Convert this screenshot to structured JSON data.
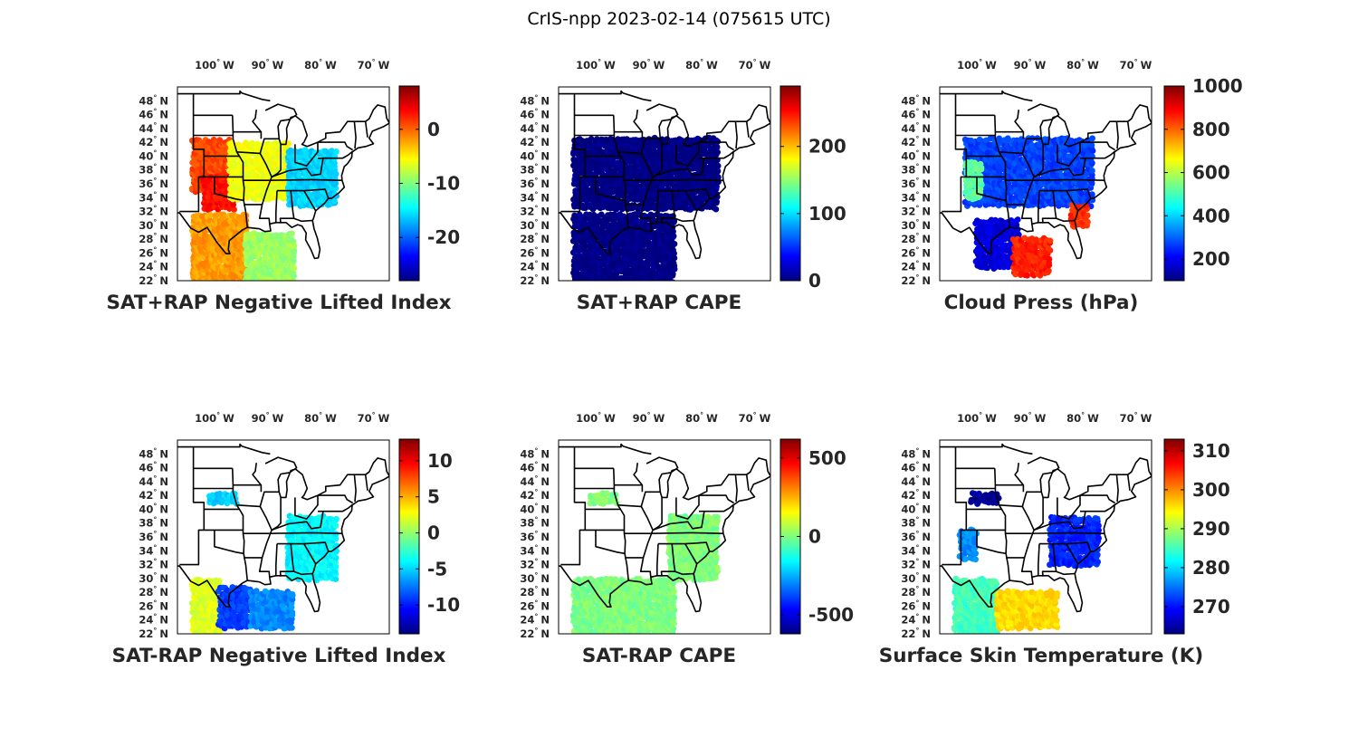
{
  "suptitle": "CrIS-npp 2023-02-14 (075615 UTC)",
  "colormap": [
    "#00007f",
    "#0000ff",
    "#007fff",
    "#00ffff",
    "#7fff7f",
    "#ffff00",
    "#ff7f00",
    "#ff0000",
    "#7f0000"
  ],
  "colors": {
    "boundaries": "#000000",
    "axes": "#000000",
    "text": "#262626",
    "background": "#ffffff"
  },
  "map_axes": {
    "lon_range": [
      -107,
      -67
    ],
    "lat_range": [
      22,
      50
    ],
    "lon_ticks": [
      {
        "lon": -100,
        "label": "100",
        "unit": "W"
      },
      {
        "lon": -90,
        "label": "90",
        "unit": "W"
      },
      {
        "lon": -80,
        "label": "80",
        "unit": "W"
      },
      {
        "lon": -70,
        "label": "70",
        "unit": "W"
      }
    ],
    "lat_ticks": [
      {
        "lat": 48,
        "label": "48",
        "unit": "N"
      },
      {
        "lat": 46,
        "label": "46",
        "unit": "N"
      },
      {
        "lat": 44,
        "label": "44",
        "unit": "N"
      },
      {
        "lat": 42,
        "label": "42",
        "unit": "N"
      },
      {
        "lat": 40,
        "label": "40",
        "unit": "N"
      },
      {
        "lat": 38,
        "label": "38",
        "unit": "N"
      },
      {
        "lat": 36,
        "label": "36",
        "unit": "N"
      },
      {
        "lat": 34,
        "label": "34",
        "unit": "N"
      },
      {
        "lat": 32,
        "label": "32",
        "unit": "N"
      },
      {
        "lat": 30,
        "label": "30",
        "unit": "N"
      },
      {
        "lat": 28,
        "label": "28",
        "unit": "N"
      },
      {
        "lat": 26,
        "label": "26",
        "unit": "N"
      },
      {
        "lat": 24,
        "label": "24",
        "unit": "N"
      },
      {
        "lat": 22,
        "label": "22",
        "unit": "N"
      }
    ]
  },
  "chart_data": [
    {
      "type": "scatter-map",
      "title": "SAT+RAP Negative Lifted Index",
      "colorbar": {
        "range": [
          -28,
          8
        ],
        "ticks": [
          0,
          -10,
          -20
        ],
        "tick_labels": [
          "0",
          "-10",
          "-20"
        ]
      },
      "regions": [
        {
          "name": "northern swath west",
          "lon": [
            -104,
            -97
          ],
          "lat": [
            35,
            42.5
          ],
          "value": 1
        },
        {
          "name": "southern plains",
          "lon": [
            -102,
            -96
          ],
          "lat": [
            32.5,
            37
          ],
          "value": 3
        },
        {
          "name": "northern swath central",
          "lon": [
            -97,
            -86
          ],
          "lat": [
            34,
            42
          ],
          "value": -6
        },
        {
          "name": "northern swath east",
          "lon": [
            -86,
            -77
          ],
          "lat": [
            33,
            41
          ],
          "value": -16
        },
        {
          "name": "southern swath west",
          "lon": [
            -104,
            -94
          ],
          "lat": [
            22,
            31.5
          ],
          "value": -2
        },
        {
          "name": "southern swath east",
          "lon": [
            -94,
            -85
          ],
          "lat": [
            22,
            29
          ],
          "value": -9
        }
      ]
    },
    {
      "type": "scatter-map",
      "title": "SAT+RAP CAPE",
      "colorbar": {
        "range": [
          0,
          290
        ],
        "ticks": [
          200,
          100,
          0
        ],
        "tick_labels": [
          "200",
          "100",
          "0"
        ]
      },
      "regions": [
        {
          "name": "northern swath",
          "lon": [
            -104,
            -77
          ],
          "lat": [
            32.5,
            42.5
          ],
          "value": 0
        },
        {
          "name": "southern swath",
          "lon": [
            -104,
            -85
          ],
          "lat": [
            22,
            31.5
          ],
          "value": 0
        }
      ]
    },
    {
      "type": "scatter-map",
      "title": "Cloud Press (hPa)",
      "colorbar": {
        "range": [
          100,
          1000
        ],
        "ticks": [
          1000,
          800,
          600,
          400,
          200
        ],
        "tick_labels": [
          "1000",
          "800",
          "600",
          "400",
          "200"
        ]
      },
      "regions": [
        {
          "name": "northern cloud deck",
          "lon": [
            -102,
            -78
          ],
          "lat": [
            33,
            42.5
          ],
          "value": 270
        },
        {
          "name": "plains low cloud",
          "lon": [
            -102,
            -99
          ],
          "lat": [
            34,
            39
          ],
          "value": 520
        },
        {
          "name": "gulf coast cloud",
          "lon": [
            -100,
            -92
          ],
          "lat": [
            24,
            31
          ],
          "value": 180
        },
        {
          "name": "gulf low cloud",
          "lon": [
            -93,
            -86
          ],
          "lat": [
            23,
            28
          ],
          "value": 860
        },
        {
          "name": "atlantic coast low cloud",
          "lon": [
            -82,
            -79
          ],
          "lat": [
            30,
            33
          ],
          "value": 850
        }
      ]
    },
    {
      "type": "scatter-map",
      "title": "SAT-RAP Negative Lifted Index",
      "colorbar": {
        "range": [
          -14,
          13
        ],
        "ticks": [
          10,
          5,
          0,
          -5,
          -10
        ],
        "tick_labels": [
          "10",
          "5",
          "0",
          "-5",
          "-10"
        ]
      },
      "regions": [
        {
          "name": "nebraska patch",
          "lon": [
            -101,
            -96
          ],
          "lat": [
            41,
            42.5
          ],
          "value": -5
        },
        {
          "name": "appalachians",
          "lon": [
            -86,
            -77
          ],
          "lat": [
            30,
            39
          ],
          "value": -4
        },
        {
          "name": "texas west",
          "lon": [
            -104,
            -99
          ],
          "lat": [
            22,
            30
          ],
          "value": 2
        },
        {
          "name": "gulf west",
          "lon": [
            -99,
            -93
          ],
          "lat": [
            23,
            29
          ],
          "value": -9
        },
        {
          "name": "gulf east",
          "lon": [
            -93,
            -85
          ],
          "lat": [
            23,
            28
          ],
          "value": -7
        }
      ]
    },
    {
      "type": "scatter-map",
      "title": "SAT-RAP CAPE",
      "colorbar": {
        "range": [
          -620,
          620
        ],
        "ticks": [
          500,
          0,
          -500
        ],
        "tick_labels": [
          "500",
          "0",
          "-500"
        ]
      },
      "regions": [
        {
          "name": "nebraska patch",
          "lon": [
            -101,
            -96
          ],
          "lat": [
            41,
            42.5
          ],
          "value": 0
        },
        {
          "name": "appalachians",
          "lon": [
            -86,
            -77
          ],
          "lat": [
            30,
            39
          ],
          "value": 0
        },
        {
          "name": "gulf swath",
          "lon": [
            -104,
            -85
          ],
          "lat": [
            22,
            30
          ],
          "value": 0
        }
      ]
    },
    {
      "type": "scatter-map",
      "title": "Surface Skin Temperature (K)",
      "colorbar": {
        "range": [
          263,
          313
        ],
        "ticks": [
          310,
          300,
          290,
          280,
          270
        ],
        "tick_labels": [
          "310",
          "300",
          "290",
          "280",
          "270"
        ]
      },
      "regions": [
        {
          "name": "nebraska patch",
          "lon": [
            -101,
            -96
          ],
          "lat": [
            41,
            42.5
          ],
          "value": 264
        },
        {
          "name": "appalachians",
          "lon": [
            -86,
            -77
          ],
          "lat": [
            32,
            39
          ],
          "value": 271
        },
        {
          "name": "plains patch",
          "lon": [
            -103,
            -100
          ],
          "lat": [
            33,
            37
          ],
          "value": 276
        },
        {
          "name": "texas coast",
          "lon": [
            -104,
            -96
          ],
          "lat": [
            22,
            30
          ],
          "value": 285
        },
        {
          "name": "gulf",
          "lon": [
            -96,
            -85
          ],
          "lat": [
            23,
            28
          ],
          "value": 296
        }
      ]
    }
  ]
}
